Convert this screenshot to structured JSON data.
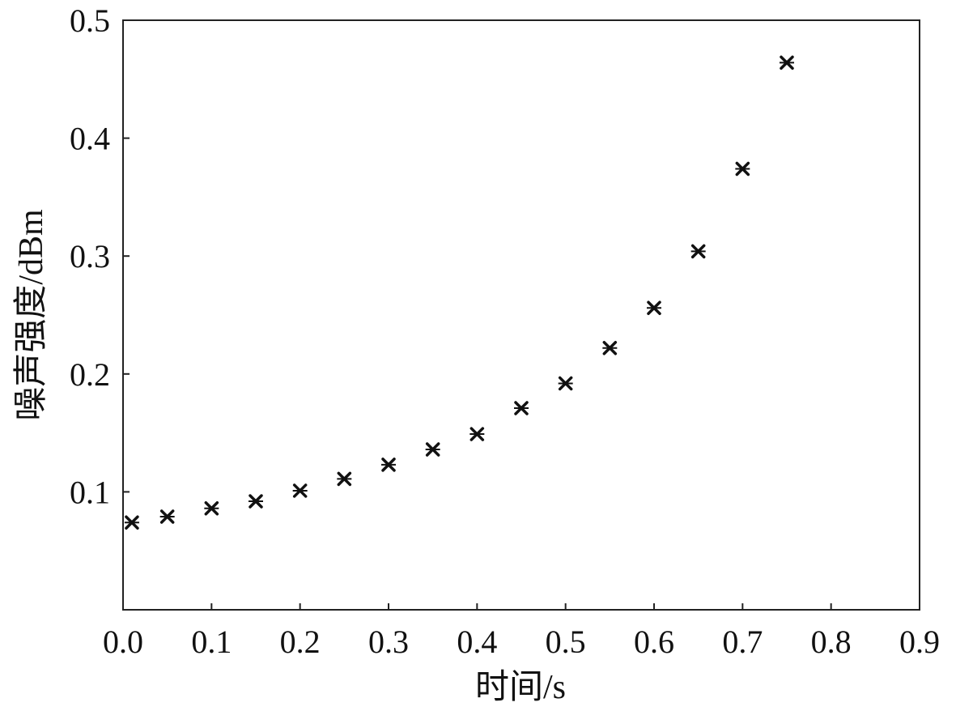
{
  "chart_data": {
    "type": "scatter",
    "title": "",
    "xlabel": "时间/s",
    "ylabel": "噪声强度/dBm",
    "xlim": [
      0.0,
      0.9
    ],
    "ylim": [
      0.0,
      0.5
    ],
    "x_ticks": [
      "0.0",
      "0.1",
      "0.2",
      "0.3",
      "0.4",
      "0.5",
      "0.6",
      "0.7",
      "0.8",
      "0.9"
    ],
    "y_ticks": [
      "0.1",
      "0.2",
      "0.3",
      "0.4",
      "0.5"
    ],
    "grid": false,
    "marker": "x",
    "marker_color": "#111111",
    "series": [
      {
        "x": [
          0.01,
          0.05,
          0.1,
          0.15,
          0.2,
          0.25,
          0.3,
          0.35,
          0.4,
          0.45,
          0.5,
          0.55,
          0.6,
          0.65,
          0.7,
          0.75
        ],
        "y": [
          0.074,
          0.079,
          0.086,
          0.092,
          0.101,
          0.111,
          0.123,
          0.136,
          0.149,
          0.171,
          0.192,
          0.222,
          0.256,
          0.304,
          0.374,
          0.464
        ]
      }
    ]
  }
}
